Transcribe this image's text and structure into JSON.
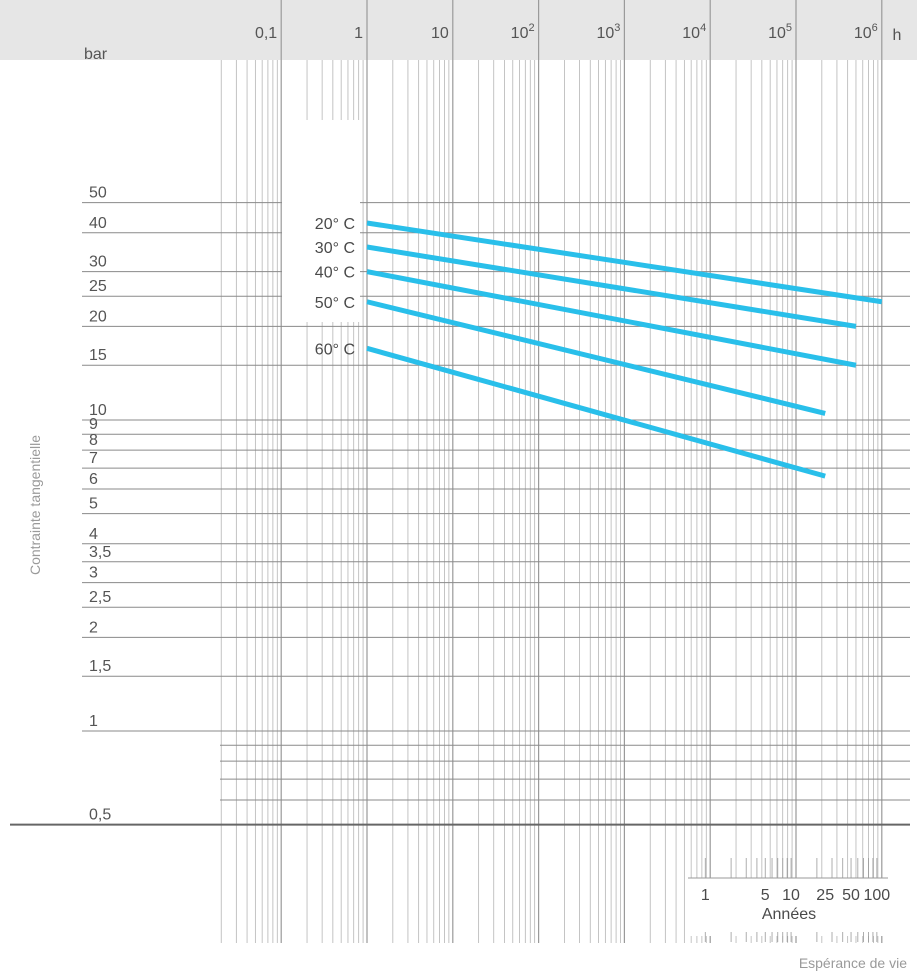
{
  "chart_data": {
    "type": "line",
    "x_scale": "log",
    "y_scale": "log",
    "xlim": [
      0.01,
      1500000
    ],
    "ylim": [
      0.5,
      60
    ],
    "x_unit": "h",
    "y_unit": "bar",
    "ylabel": "Contrainte tangentielle",
    "xlabel": "Espérance de vie",
    "secondary_xlabel": "Années",
    "x_tick_labels": [
      {
        "value": 0.1,
        "base": "0,1",
        "exp": ""
      },
      {
        "value": 1,
        "base": "1",
        "exp": ""
      },
      {
        "value": 10,
        "base": "10",
        "exp": ""
      },
      {
        "value": 100,
        "base": "10",
        "exp": "2"
      },
      {
        "value": 1000,
        "base": "10",
        "exp": "3"
      },
      {
        "value": 10000,
        "base": "10",
        "exp": "4"
      },
      {
        "value": 100000,
        "base": "10",
        "exp": "5"
      },
      {
        "value": 1000000,
        "base": "10",
        "exp": "6"
      }
    ],
    "y_tick_labels": [
      {
        "value": 50,
        "label": "50"
      },
      {
        "value": 40,
        "label": "40"
      },
      {
        "value": 30,
        "label": "30"
      },
      {
        "value": 25,
        "label": "25"
      },
      {
        "value": 20,
        "label": "20"
      },
      {
        "value": 15,
        "label": "15"
      },
      {
        "value": 10,
        "label": "10"
      },
      {
        "value": 9,
        "label": "9"
      },
      {
        "value": 8,
        "label": "8"
      },
      {
        "value": 7,
        "label": "7"
      },
      {
        "value": 6,
        "label": "6"
      },
      {
        "value": 5,
        "label": "5"
      },
      {
        "value": 4,
        "label": "4"
      },
      {
        "value": 3.5,
        "label": "3,5"
      },
      {
        "value": 3,
        "label": "3"
      },
      {
        "value": 2.5,
        "label": "2,5"
      },
      {
        "value": 2,
        "label": "2"
      },
      {
        "value": 1.5,
        "label": "1,5"
      },
      {
        "value": 1,
        "label": "1"
      },
      {
        "value": 0.5,
        "label": "0,5"
      }
    ],
    "year_ticks": [
      {
        "years": 1,
        "label": "1"
      },
      {
        "years": 5,
        "label": "5"
      },
      {
        "years": 10,
        "label": "10"
      },
      {
        "years": 25,
        "label": "25"
      },
      {
        "years": 50,
        "label": "50"
      },
      {
        "years": 100,
        "label": "100"
      }
    ],
    "series": [
      {
        "name": "20° C",
        "points": [
          [
            1,
            43
          ],
          [
            1000000,
            24
          ]
        ]
      },
      {
        "name": "30° C",
        "points": [
          [
            1,
            36
          ],
          [
            500000,
            20
          ]
        ]
      },
      {
        "name": "40° C",
        "points": [
          [
            1,
            30
          ],
          [
            500000,
            15
          ]
        ]
      },
      {
        "name": "50° C",
        "points": [
          [
            1,
            24
          ],
          [
            219000,
            10.5
          ]
        ]
      },
      {
        "name": "60° C",
        "points": [
          [
            1,
            17
          ],
          [
            219000,
            6.6
          ]
        ]
      }
    ],
    "line_color": "#29bfea",
    "grid": true
  }
}
